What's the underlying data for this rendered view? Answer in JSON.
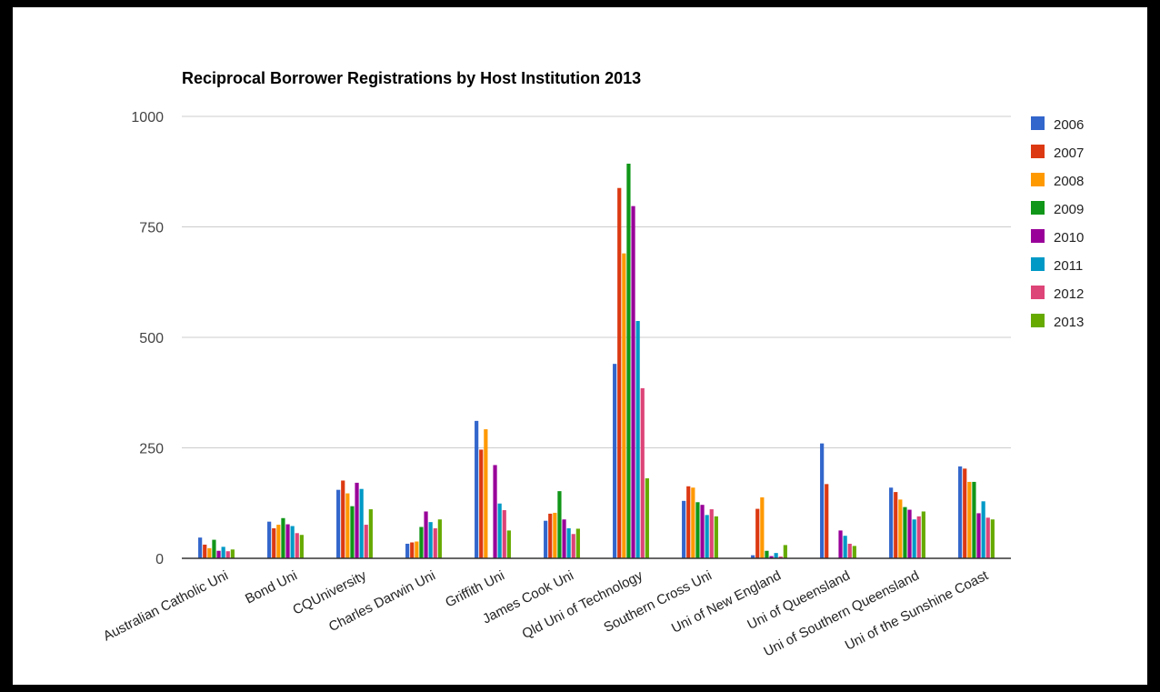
{
  "chart_data": {
    "type": "bar",
    "title": "Reciprocal Borrower Registrations by Host Institution 2013",
    "xlabel": "",
    "ylabel": "",
    "ylim": [
      0,
      1000
    ],
    "yticks": [
      0,
      250,
      500,
      750,
      1000
    ],
    "grid": true,
    "legend_position": "right",
    "categories": [
      "Australian Catholic Uni",
      "Bond Uni",
      "CQUniversity",
      "Charles Darwin Uni",
      "Griffith Uni",
      "James Cook Uni",
      "Qld Uni of Technology",
      "Southern Cross Uni",
      "Uni of New England",
      "Uni of Queensland",
      "Uni of Southern Queensland",
      "Uni of the Sunshine Coast"
    ],
    "series": [
      {
        "name": "2006",
        "color": "#3366cc",
        "values": [
          47,
          83,
          155,
          33,
          311,
          85,
          440,
          130,
          7,
          260,
          160,
          208
        ]
      },
      {
        "name": "2007",
        "color": "#dc3912",
        "values": [
          31,
          68,
          176,
          36,
          246,
          101,
          838,
          163,
          112,
          168,
          150,
          203
        ]
      },
      {
        "name": "2008",
        "color": "#ff9900",
        "values": [
          23,
          76,
          147,
          38,
          292,
          103,
          690,
          160,
          138,
          0,
          133,
          173
        ]
      },
      {
        "name": "2009",
        "color": "#109618",
        "values": [
          42,
          91,
          118,
          71,
          0,
          152,
          893,
          127,
          17,
          0,
          116,
          173
        ]
      },
      {
        "name": "2010",
        "color": "#990099",
        "values": [
          17,
          77,
          171,
          106,
          211,
          88,
          797,
          121,
          5,
          63,
          110,
          102
        ]
      },
      {
        "name": "2011",
        "color": "#0099c6",
        "values": [
          26,
          73,
          157,
          82,
          124,
          68,
          537,
          98,
          12,
          51,
          88,
          129
        ]
      },
      {
        "name": "2012",
        "color": "#dd4477",
        "values": [
          16,
          57,
          76,
          68,
          109,
          55,
          385,
          111,
          4,
          33,
          95,
          92
        ]
      },
      {
        "name": "2013",
        "color": "#66aa00",
        "values": [
          20,
          53,
          111,
          88,
          63,
          67,
          181,
          95,
          30,
          28,
          106,
          88
        ]
      }
    ]
  }
}
